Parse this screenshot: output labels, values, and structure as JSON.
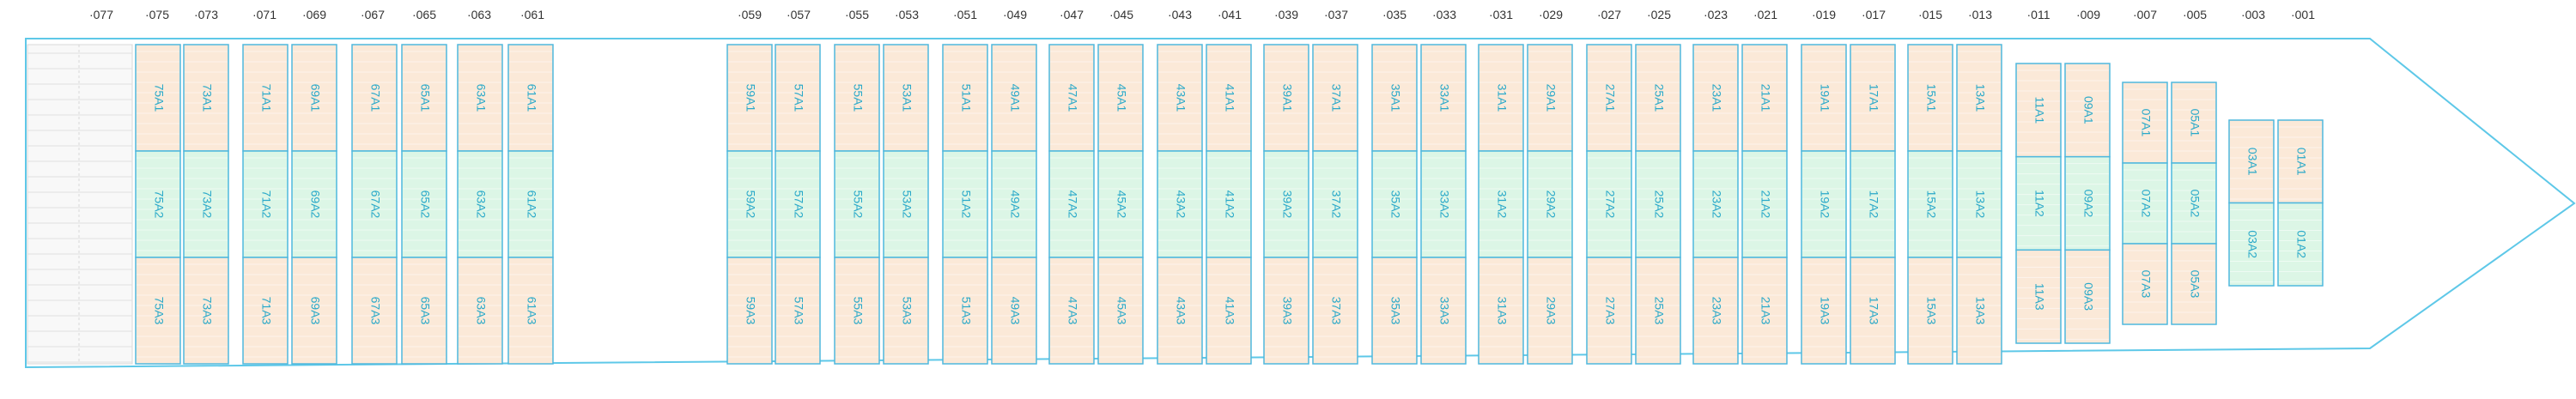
{
  "colors": {
    "hull": "#5ec8e8",
    "bay_border": "#4fb8de",
    "row_a1_a3": "#fbe9d8",
    "row_a2": "#dcf6e6",
    "label": "#2aa9c9",
    "stern_block": "#ececec"
  },
  "col_labels": [
    "077",
    "075",
    "073",
    "071",
    "069",
    "067",
    "065",
    "063",
    "061",
    "059",
    "057",
    "055",
    "053",
    "051",
    "049",
    "047",
    "045",
    "043",
    "041",
    "039",
    "037",
    "035",
    "033",
    "031",
    "029",
    "027",
    "025",
    "023",
    "021",
    "019",
    "017",
    "015",
    "013",
    "011",
    "009",
    "007",
    "005",
    "003",
    "001"
  ],
  "slots": [
    {
      "col": "075",
      "labels": [
        "75A1",
        "75A2",
        "75A3"
      ]
    },
    {
      "col": "073",
      "labels": [
        "73A1",
        "73A2",
        "73A3"
      ]
    },
    {
      "col": "071",
      "labels": [
        "71A1",
        "71A2",
        "71A3"
      ]
    },
    {
      "col": "069",
      "labels": [
        "69A1",
        "69A2",
        "69A3"
      ]
    },
    {
      "col": "067",
      "labels": [
        "67A1",
        "67A2",
        "67A3"
      ]
    },
    {
      "col": "065",
      "labels": [
        "65A1",
        "65A2",
        "65A3"
      ]
    },
    {
      "col": "063",
      "labels": [
        "63A1",
        "63A2",
        "63A3"
      ]
    },
    {
      "col": "061",
      "labels": [
        "61A1",
        "61A2",
        "61A3"
      ]
    },
    {
      "col": "059",
      "labels": [
        "59A1",
        "59A2",
        "59A3"
      ]
    },
    {
      "col": "057",
      "labels": [
        "57A1",
        "57A2",
        "57A3"
      ]
    },
    {
      "col": "055",
      "labels": [
        "55A1",
        "55A2",
        "55A3"
      ]
    },
    {
      "col": "053",
      "labels": [
        "53A1",
        "53A2",
        "53A3"
      ]
    },
    {
      "col": "051",
      "labels": [
        "51A1",
        "51A2",
        "51A3"
      ]
    },
    {
      "col": "049",
      "labels": [
        "49A1",
        "49A2",
        "49A3"
      ]
    },
    {
      "col": "047",
      "labels": [
        "47A1",
        "47A2",
        "47A3"
      ]
    },
    {
      "col": "045",
      "labels": [
        "45A1",
        "45A2",
        "45A3"
      ]
    },
    {
      "col": "043",
      "labels": [
        "43A1",
        "43A2",
        "43A3"
      ]
    },
    {
      "col": "041",
      "labels": [
        "41A1",
        "41A2",
        "41A3"
      ]
    },
    {
      "col": "039",
      "labels": [
        "39A1",
        "39A2",
        "39A3"
      ]
    },
    {
      "col": "037",
      "labels": [
        "37A1",
        "37A2",
        "37A3"
      ]
    },
    {
      "col": "035",
      "labels": [
        "35A1",
        "35A2",
        "35A3"
      ]
    },
    {
      "col": "033",
      "labels": [
        "33A1",
        "33A2",
        "33A3"
      ]
    },
    {
      "col": "031",
      "labels": [
        "31A1",
        "31A2",
        "31A3"
      ]
    },
    {
      "col": "029",
      "labels": [
        "29A1",
        "29A2",
        "29A3"
      ]
    },
    {
      "col": "027",
      "labels": [
        "27A1",
        "27A2",
        "27A3"
      ]
    },
    {
      "col": "025",
      "labels": [
        "25A1",
        "25A2",
        "25A3"
      ]
    },
    {
      "col": "023",
      "labels": [
        "23A1",
        "23A2",
        "23A3"
      ]
    },
    {
      "col": "021",
      "labels": [
        "21A1",
        "21A2",
        "21A3"
      ]
    },
    {
      "col": "019",
      "labels": [
        "19A1",
        "19A2",
        "19A3"
      ]
    },
    {
      "col": "017",
      "labels": [
        "17A1",
        "17A2",
        "17A3"
      ]
    },
    {
      "col": "015",
      "labels": [
        "15A1",
        "15A2",
        "15A3"
      ]
    },
    {
      "col": "013",
      "labels": [
        "13A1",
        "13A2",
        "13A3"
      ]
    },
    {
      "col": "011",
      "labels": [
        "11A1",
        "11A2",
        "11A3"
      ]
    },
    {
      "col": "009",
      "labels": [
        "09A1",
        "09A2",
        "09A3"
      ]
    },
    {
      "col": "007",
      "labels": [
        "07A1",
        "07A2",
        "07A3"
      ]
    },
    {
      "col": "005",
      "labels": [
        "05A1",
        "05A2",
        "05A3"
      ]
    },
    {
      "col": "003",
      "labels": [
        "03A1",
        "03A2"
      ]
    },
    {
      "col": "001",
      "labels": [
        "01A1",
        "01A2"
      ]
    }
  ]
}
